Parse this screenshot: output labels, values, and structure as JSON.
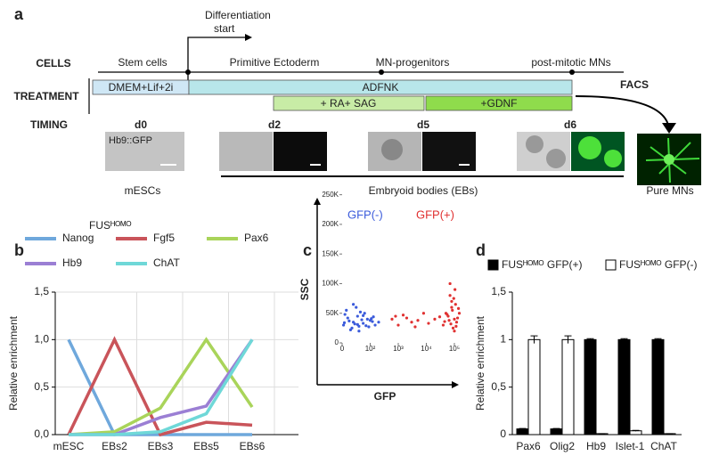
{
  "panel_a": {
    "label": "a",
    "annotation_lines": [
      "Differentiation",
      "start"
    ],
    "rows": [
      "CELLS",
      "TREATMENT",
      "TIMING"
    ],
    "stages": [
      "Stem cells",
      "Primitive Ectoderm",
      "MN-progenitors",
      "post-mitotic MNs"
    ],
    "treatments": [
      "DMEM+Lif+2i",
      "ADFNK",
      "+ RA+ SAG",
      "+GDNF"
    ],
    "facs": "FACS",
    "timepoints": [
      "d0",
      "d2",
      "d5",
      "d6"
    ],
    "image_label": "Hb9::GFP",
    "bottom_labels": [
      "mESCs",
      "Embryoid bodies (EBs)",
      "Pure MNs"
    ]
  },
  "chart_data": [
    {
      "type": "line",
      "panel": "b",
      "subtitle": "FUSᴴᴼᴹᴼ",
      "ylabel": "Relative enrichment",
      "categories": [
        "mESC",
        "EBs2",
        "EBs3",
        "EBs5",
        "EBs6"
      ],
      "series": [
        {
          "name": "Nanog",
          "color": "#6fa8dc",
          "values": [
            1,
            0,
            0,
            0,
            0
          ]
        },
        {
          "name": "Fgf5",
          "color": "#c9545a",
          "values": [
            0,
            1,
            0,
            0.13,
            0.1
          ]
        },
        {
          "name": "Pax6",
          "color": "#a9d45a",
          "values": [
            0,
            0.03,
            0.28,
            1,
            0.29
          ]
        },
        {
          "name": "Hb9",
          "color": "#9b7fd4",
          "values": [
            0,
            0,
            0.18,
            0.3,
            1
          ]
        },
        {
          "name": "ChAT",
          "color": "#6fd8d8",
          "values": [
            0,
            0,
            0.03,
            0.22,
            1
          ]
        }
      ],
      "ylim": [
        0,
        1.5
      ],
      "yticks": [
        {
          "value": 0,
          "label": "0,0"
        },
        {
          "value": 0.5,
          "label": "0,5"
        },
        {
          "value": 1,
          "label": "1,0"
        },
        {
          "value": 1.5,
          "label": "1,5"
        }
      ],
      "grid": true
    },
    {
      "type": "scatter",
      "panel": "c",
      "xlabel": "GFP",
      "ylabel": "SSC",
      "xscale": "symlog",
      "series": [
        {
          "name": "GFP(-)",
          "color": "#3b5bdb",
          "x": [
            5,
            20,
            40,
            60,
            80,
            100,
            15,
            35,
            55,
            75,
            90,
            120,
            150,
            10,
            30,
            50,
            70,
            95,
            130,
            45,
            65,
            25,
            85,
            110,
            8,
            60,
            40,
            200,
            75,
            55
          ],
          "y": [
            30000,
            42000,
            35000,
            28000,
            50000,
            38000,
            55000,
            25000,
            45000,
            33000,
            40000,
            36000,
            30000,
            48000,
            22000,
            60000,
            39000,
            27000,
            44000,
            32000,
            52000,
            37000,
            29000,
            41000,
            34000,
            20000,
            65000,
            35000,
            46000,
            31000
          ]
        },
        {
          "name": "GFP(+)",
          "color": "#e03131",
          "x": [
            40000,
            60000,
            80000,
            100000,
            120000,
            70000,
            90000,
            50000,
            110000,
            130000,
            65000,
            85000,
            95000,
            75000,
            55000,
            140000,
            105000,
            45000,
            115000,
            80000,
            30000,
            20000,
            150000,
            100000,
            70000,
            2000,
            5000,
            1000,
            800,
            3000,
            8000,
            12000,
            600,
            4000,
            1500
          ],
          "y": [
            30000,
            45000,
            60000,
            40000,
            35000,
            80000,
            25000,
            50000,
            65000,
            42000,
            38000,
            55000,
            75000,
            32000,
            48000,
            58000,
            90000,
            36000,
            28000,
            70000,
            44000,
            40000,
            50000,
            20000,
            100000,
            42000,
            38000,
            30000,
            45000,
            35000,
            50000,
            33000,
            40000,
            27000,
            47000
          ]
        }
      ],
      "xlim": [
        0,
        300000
      ],
      "xticks": [
        0,
        {
          "value": 100,
          "label": "10²"
        },
        {
          "value": 1000,
          "label": "10³"
        },
        {
          "value": 10000,
          "label": "10⁴"
        },
        {
          "value": 100000,
          "label": "10⁵"
        }
      ],
      "ylim": [
        0,
        260000
      ],
      "yticks": [
        0,
        {
          "value": 50000,
          "label": "50K"
        },
        {
          "value": 100000,
          "label": "100K"
        },
        {
          "value": 150000,
          "label": "150K"
        },
        {
          "value": 200000,
          "label": "200K"
        },
        {
          "value": 250000,
          "label": "250K"
        }
      ]
    },
    {
      "type": "bar",
      "panel": "d",
      "ylabel": "Relative enrichment",
      "categories": [
        "Pax6",
        "Olig2",
        "Hb9",
        "Islet-1",
        "ChAT"
      ],
      "series": [
        {
          "name": "FUSᴴᴼᴹᴼ GFP(+)",
          "color": "#000000",
          "values": [
            0.06,
            0.06,
            1,
            1,
            1
          ],
          "errors": [
            0.005,
            0.005,
            0.01,
            0.01,
            0.01
          ]
        },
        {
          "name": "FUSᴴᴼᴹᴼ GFP(-)",
          "color": "#ffffff",
          "values": [
            1,
            1,
            0.01,
            0.04,
            0.01
          ],
          "errors": [
            0.04,
            0.04,
            0,
            0.005,
            0
          ]
        }
      ],
      "ylim": [
        0,
        1.5
      ],
      "yticks": [
        {
          "value": 0,
          "label": "0"
        },
        {
          "value": 0.5,
          "label": "0,5"
        },
        {
          "value": 1,
          "label": "1"
        },
        {
          "value": 1.5,
          "label": "1,5"
        }
      ]
    }
  ]
}
